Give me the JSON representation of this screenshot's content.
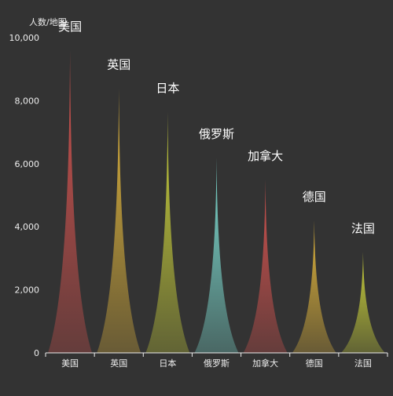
{
  "chart_data": {
    "type": "bar",
    "unit_label": "人数/地图",
    "categories": [
      "美国",
      "英国",
      "日本",
      "俄罗斯",
      "加拿大",
      "德国",
      "法国"
    ],
    "values": [
      9600,
      8400,
      7650,
      6200,
      5500,
      4200,
      3200
    ],
    "data_labels": [
      "美国",
      "英国",
      "日本",
      "俄罗斯",
      "加拿大",
      "德国",
      "法国"
    ],
    "colors": [
      "#d9534f",
      "#e6b93b",
      "#cfd63a",
      "#7fe3d8",
      "#d9534f",
      "#e6b93b",
      "#cfd63a"
    ],
    "ylim": [
      0,
      10000
    ],
    "yticks": [
      0,
      2000,
      4000,
      6000,
      8000,
      10000
    ],
    "ytick_labels": [
      "0",
      "2,000",
      "4,000",
      "6,000",
      "8,000",
      "10,000"
    ],
    "grid": false,
    "background": "#333333"
  }
}
